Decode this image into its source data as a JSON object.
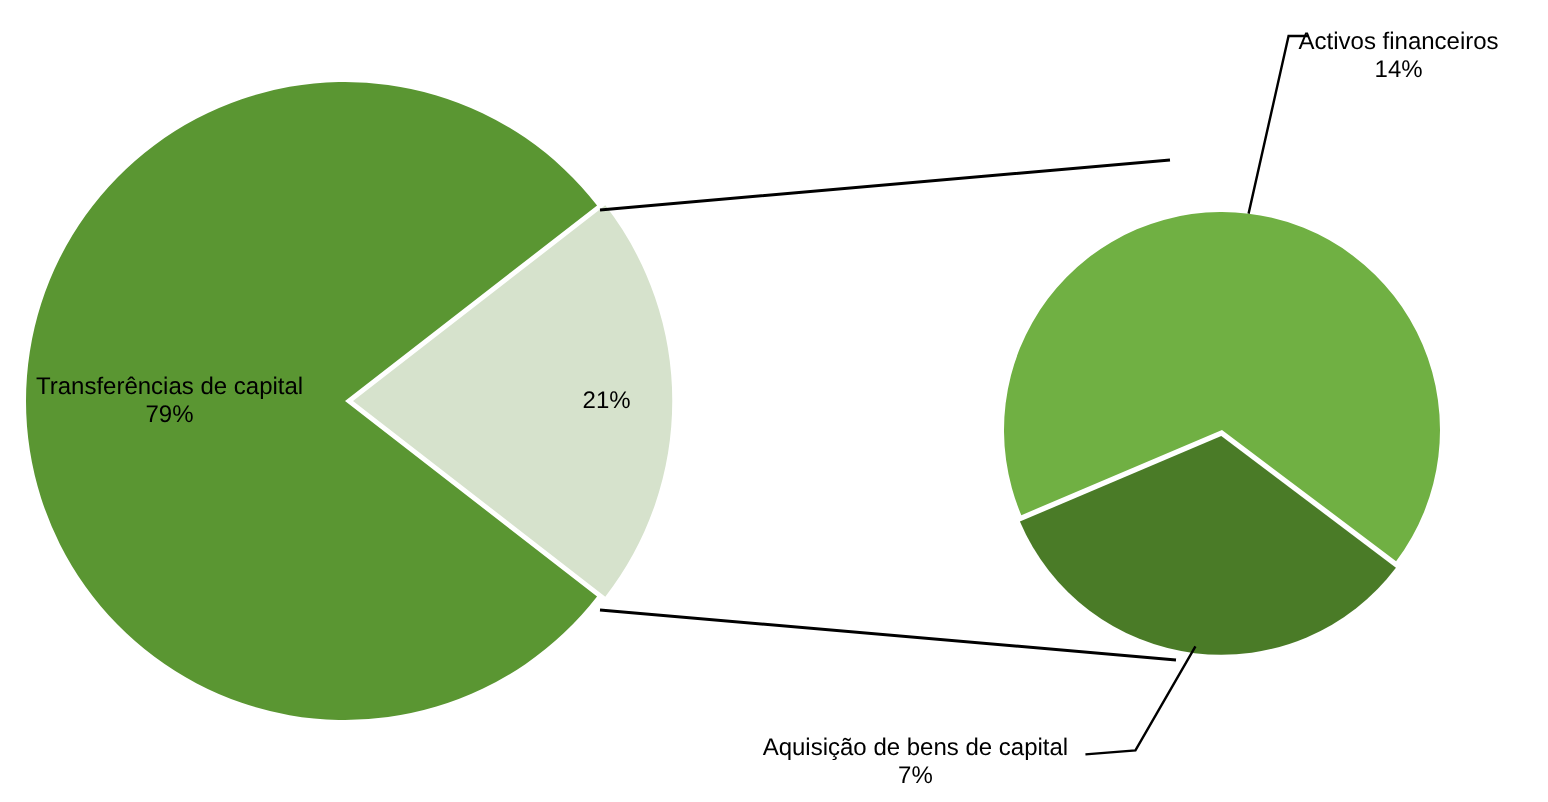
{
  "chart_data": [
    {
      "type": "pie",
      "categories": [
        "Transferências de capital",
        null
      ],
      "values": [
        79,
        21
      ],
      "colors": [
        "#5a9632",
        "#d6e2cc"
      ],
      "value_labels": [
        "79%",
        "21%"
      ],
      "legend": false
    },
    {
      "type": "pie",
      "categories": [
        "Activos financeiros",
        "Aquisição de bens de capital"
      ],
      "values": [
        14,
        7
      ],
      "colors": [
        "#70b043",
        "#4a7b27"
      ],
      "value_labels": [
        "14%",
        "7%"
      ],
      "legend": false
    }
  ]
}
